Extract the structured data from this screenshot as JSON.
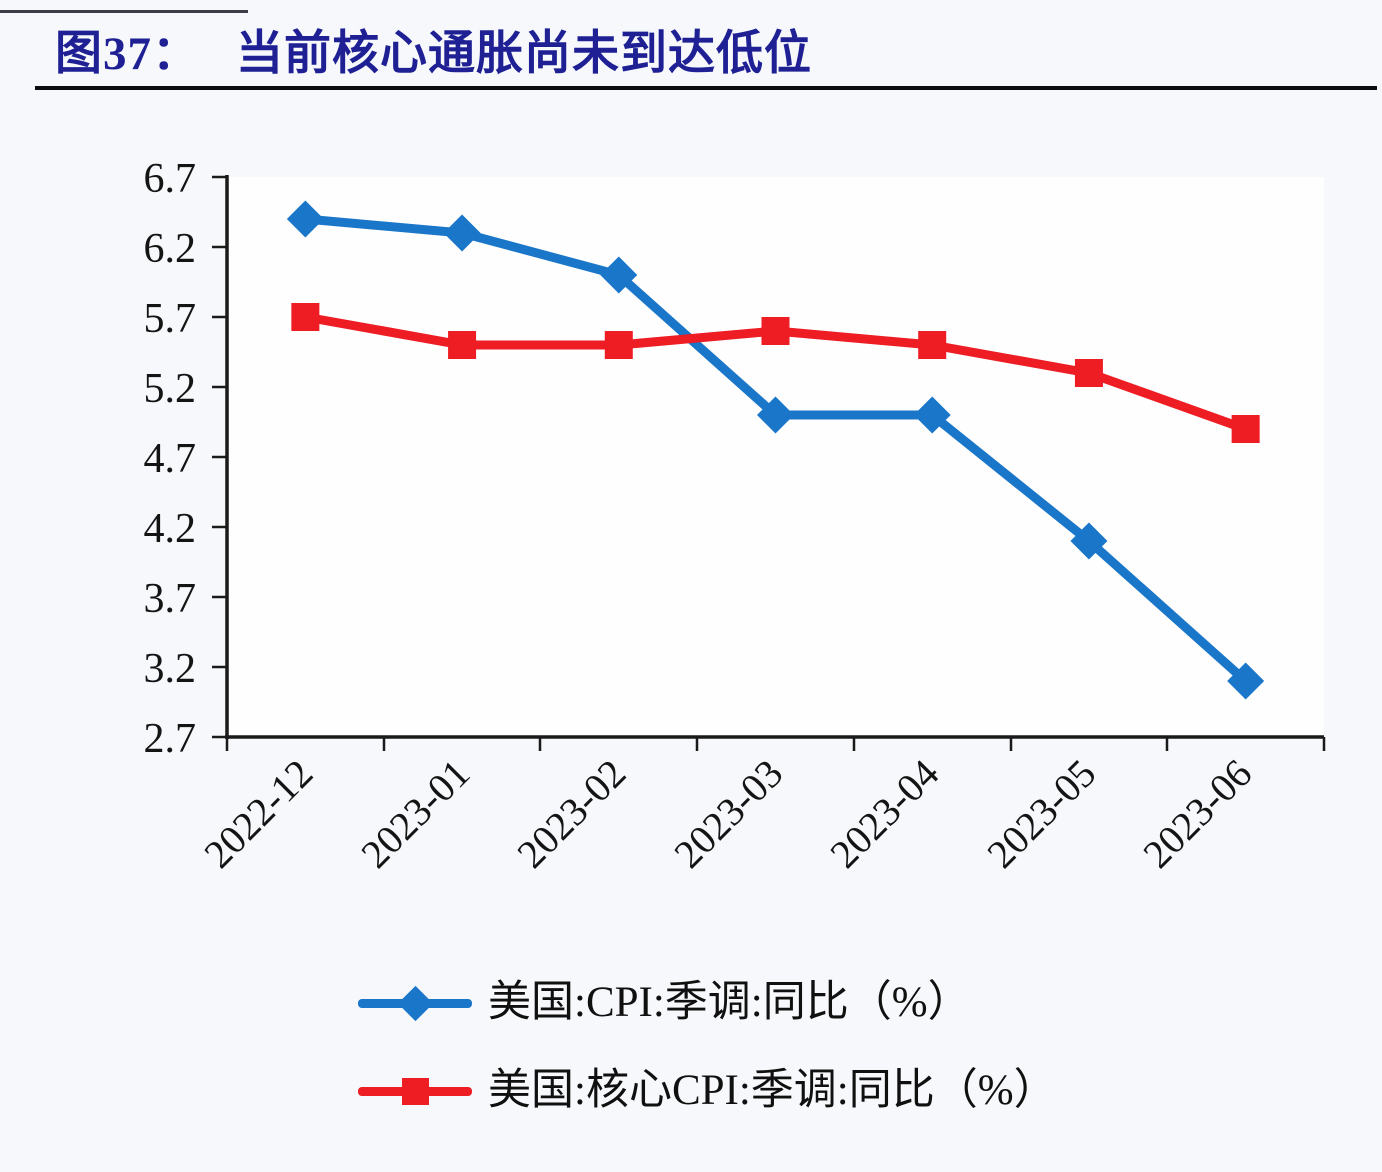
{
  "page": {
    "figure_label": "图37：",
    "figure_title": "当前核心通胀尚未到达低位"
  },
  "chart_data": {
    "type": "line",
    "title": "当前核心通胀尚未到达低位",
    "categories": [
      "2022-12",
      "2023-01",
      "2023-02",
      "2023-03",
      "2023-04",
      "2023-05",
      "2023-06"
    ],
    "series": [
      {
        "name": "美国:CPI:季调:同比（%）",
        "color": "#1A76C8",
        "marker": "diamond",
        "values": [
          6.4,
          6.3,
          6.0,
          5.0,
          5.0,
          4.1,
          3.1
        ]
      },
      {
        "name": "美国:核心CPI:季调:同比（%）",
        "color": "#EE1C23",
        "marker": "square",
        "values": [
          5.7,
          5.5,
          5.5,
          5.6,
          5.5,
          5.3,
          4.9
        ]
      }
    ],
    "ylim": [
      2.7,
      6.7
    ],
    "ytick_step": 0.5,
    "ytick_labels": [
      "6.7",
      "6.2",
      "5.7",
      "5.2",
      "4.7",
      "4.2",
      "3.7",
      "3.2",
      "2.7"
    ],
    "xlabel": "",
    "ylabel": "",
    "grid": false,
    "legend_position": "bottom-left",
    "axis_color": "#1a1a1a"
  }
}
